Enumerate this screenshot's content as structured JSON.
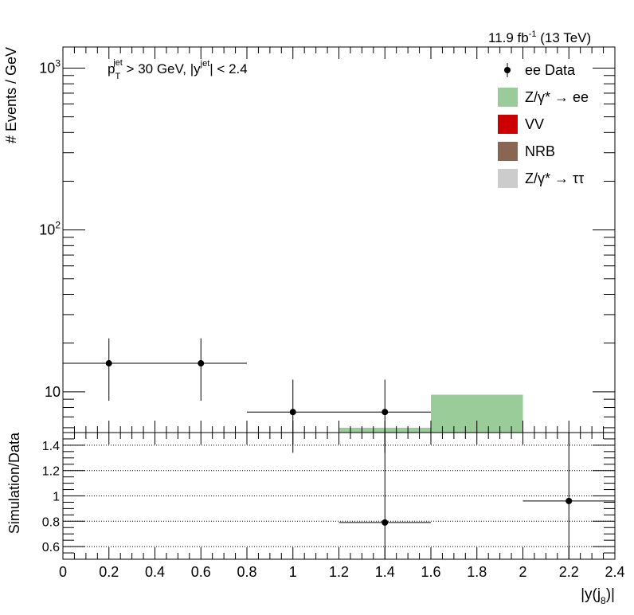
{
  "header": {
    "lumi": "11.9 fb",
    "lumi_exp": "-1",
    "energy": " (13 TeV)"
  },
  "cuts": {
    "pt_text": "p",
    "pt_sub": "T",
    "pt_sup": "jet",
    "pt_tail": " > 30 GeV,  |y",
    "y_sup": "jet",
    "y_tail": "| < 2.4"
  },
  "legend": [
    {
      "key": "data",
      "label": "ee Data",
      "color": "#000000"
    },
    {
      "key": "zee",
      "label": "Z/γ* → ee",
      "color": "#99cc99"
    },
    {
      "key": "vv",
      "label": "VV",
      "color": "#cc0000"
    },
    {
      "key": "nrb",
      "label": "NRB",
      "color": "#8a6552"
    },
    {
      "key": "ztt",
      "label": "Z/γ* → ττ",
      "color": "#cccccc"
    }
  ],
  "chart_data": [
    {
      "type": "bar",
      "panel": "main",
      "ylabel": "# Events / GeV",
      "xlim": [
        0,
        2.4
      ],
      "ylim": [
        5.6,
        1350
      ],
      "yscale": "log",
      "ytick_labels": [
        "10",
        "10",
        "10"
      ],
      "ytick_exps": [
        "",
        "2",
        "3"
      ],
      "ytick_values": [
        10,
        100,
        1000
      ],
      "bin_edges": [
        0,
        0.4,
        0.8,
        1.2,
        1.6,
        2.0,
        2.4
      ],
      "series": [
        {
          "name": "Z/γ* → ee",
          "kind": "stacked-bar",
          "values": [
            0,
            0,
            0,
            6.0,
            9.6,
            0
          ]
        },
        {
          "name": "ee Data",
          "kind": "points",
          "x": [
            0.2,
            0.6,
            1.0,
            1.4
          ],
          "y": [
            15.0,
            15.0,
            7.5,
            7.5
          ],
          "xerr": [
            0.2,
            0.2,
            0.2,
            0.2
          ],
          "yerr_low": [
            6.2,
            6.2,
            3.3,
            3.3
          ],
          "yerr_high": [
            6.4,
            6.4,
            4.4,
            4.4
          ]
        }
      ]
    },
    {
      "type": "scatter",
      "panel": "ratio",
      "xlabel": "|y(j",
      "xlabel_sub": "8",
      "xlabel_tail": ")|",
      "ylabel": "Simulation/Data",
      "xlim": [
        0,
        2.4
      ],
      "ylim": [
        0.5,
        1.5
      ],
      "grid": "horizontal-dotted",
      "grid_values": [
        0.6,
        0.8,
        1.0,
        1.2,
        1.4
      ],
      "ytick_labels": [
        "0.6",
        "0.8",
        "1",
        "1.2",
        "1.4"
      ],
      "xtick_labels": [
        "0",
        "0.2",
        "0.4",
        "0.6",
        "0.8",
        "1",
        "1.2",
        "1.4",
        "1.6",
        "1.8",
        "2",
        "2.2",
        "2.4"
      ],
      "series": [
        {
          "name": "Simulation/Data",
          "x": [
            1.4,
            2.2
          ],
          "y": [
            0.79,
            0.96
          ],
          "xerr": [
            0.2,
            0.2
          ],
          "yerr_low": [
            0.5,
            0.5
          ],
          "yerr_high": [
            0.7,
            0.6
          ]
        }
      ]
    }
  ]
}
